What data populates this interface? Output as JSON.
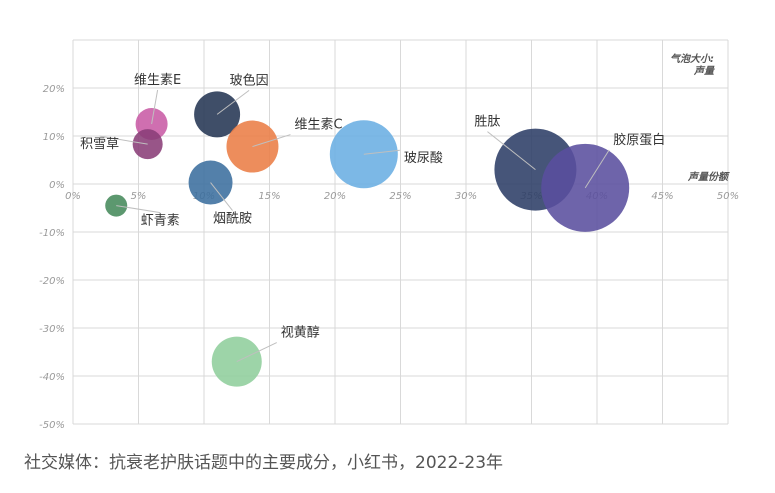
{
  "caption": "社交媒体：抗衰老护肤话题中的主要成分，小红书，2022-23年",
  "chart_data": {
    "type": "bubble",
    "xlabel": "声量份额",
    "size_label_lines": [
      "气泡大小:",
      "声量"
    ],
    "xlim": [
      0,
      50
    ],
    "ylim": [
      -50,
      30
    ],
    "x_ticks": [
      "0%",
      "5%",
      "10%",
      "15%",
      "20%",
      "25%",
      "30%",
      "35%",
      "40%",
      "45%",
      "50%"
    ],
    "y_ticks": [
      "20%",
      "10%",
      "0%",
      "-10%",
      "-20%",
      "-30%",
      "-40%",
      "-50%"
    ],
    "grid": true,
    "points": [
      {
        "name": "维生素E",
        "x": 6.0,
        "y": 12.5,
        "r": 16,
        "color": "#c85ba5",
        "label_dx": 6,
        "label_dy": -40,
        "anchor": "middle"
      },
      {
        "name": "积雪草",
        "x": 5.7,
        "y": 8.3,
        "r": 15,
        "color": "#8a3e78",
        "label_dx": -48,
        "label_dy": 4,
        "anchor": "middle"
      },
      {
        "name": "玻色因",
        "x": 11.0,
        "y": 14.5,
        "r": 23,
        "color": "#243553",
        "label_dx": 32,
        "label_dy": -30,
        "anchor": "middle"
      },
      {
        "name": "维生素C",
        "x": 13.7,
        "y": 7.8,
        "r": 26,
        "color": "#ea7d45",
        "label_dx": 42,
        "label_dy": -18,
        "anchor": "start"
      },
      {
        "name": "玻尿酸",
        "x": 22.2,
        "y": 6.2,
        "r": 34,
        "color": "#6aaee2",
        "label_dx": 40,
        "label_dy": 8,
        "anchor": "start"
      },
      {
        "name": "烟酰胺",
        "x": 10.5,
        "y": 0.3,
        "r": 22,
        "color": "#3b6e9e",
        "label_dx": 22,
        "label_dy": 40,
        "anchor": "middle"
      },
      {
        "name": "虾青素",
        "x": 3.3,
        "y": -4.5,
        "r": 11,
        "color": "#468a5b",
        "label_dx": 44,
        "label_dy": 19,
        "anchor": "middle"
      },
      {
        "name": "胜肽",
        "x": 35.3,
        "y": 3.0,
        "r": 41,
        "color": "#2c3e66",
        "label_dx": -48,
        "label_dy": -44,
        "anchor": "middle"
      },
      {
        "name": "胶原蛋白",
        "x": 39.1,
        "y": -0.8,
        "r": 44,
        "color": "#5a4f9e",
        "label_dx": 28,
        "label_dy": -44,
        "anchor": "start"
      },
      {
        "name": "视黄醇",
        "x": 12.5,
        "y": -37.0,
        "r": 25,
        "color": "#8fce9c",
        "label_dx": 44,
        "label_dy": -25,
        "anchor": "start"
      }
    ]
  }
}
